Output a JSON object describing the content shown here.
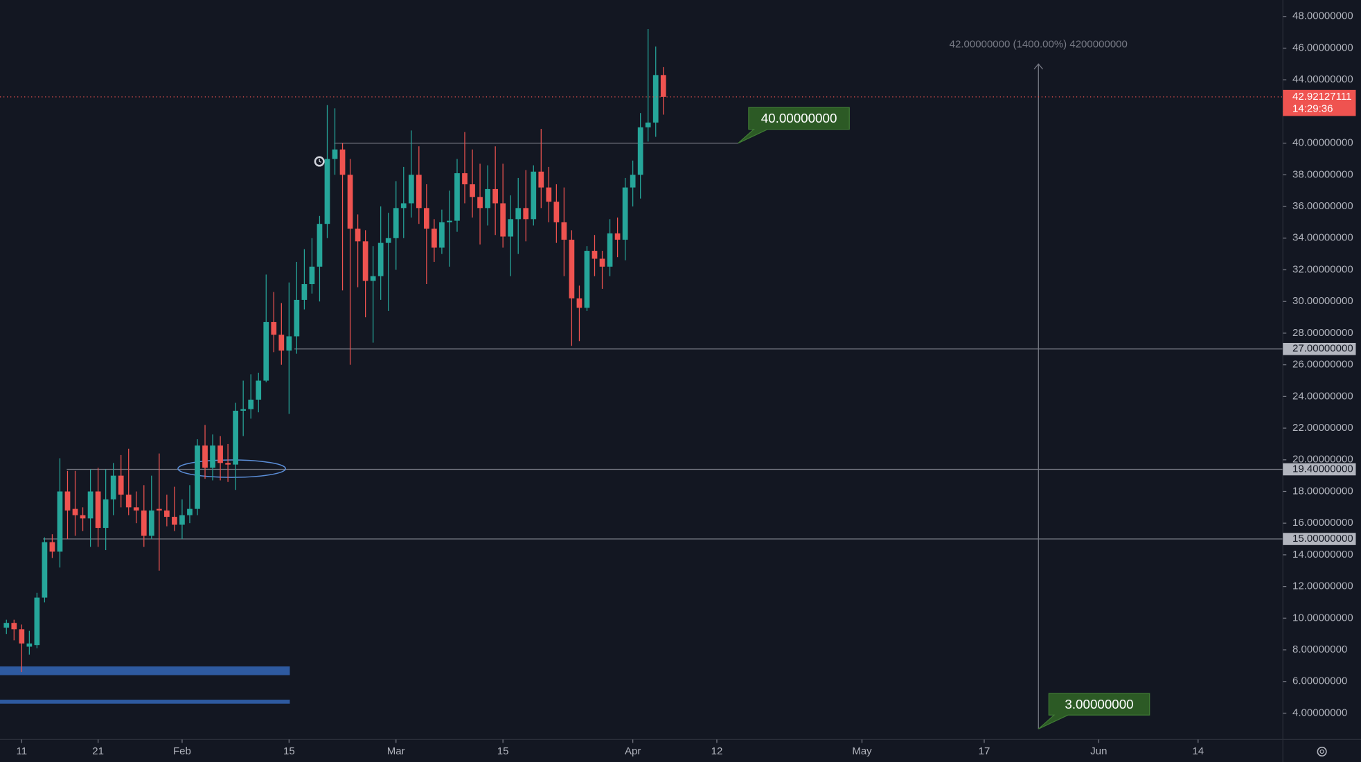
{
  "chart_data": {
    "type": "candlestick",
    "x": [
      9,
      10,
      11,
      12,
      13,
      14,
      15,
      16,
      17,
      18,
      19,
      20,
      21,
      22,
      23,
      24,
      25,
      26,
      27,
      28,
      29,
      30,
      31,
      32,
      33,
      34,
      35,
      36,
      37,
      38,
      39,
      40,
      41,
      42,
      43,
      44,
      45,
      46,
      47,
      48,
      49,
      50,
      51,
      52,
      53,
      54,
      55,
      56,
      57,
      58,
      59,
      60,
      61,
      62,
      63,
      64,
      65,
      66,
      67,
      68,
      69,
      70,
      71,
      72,
      73,
      74,
      75,
      76,
      77,
      78,
      79,
      80,
      81,
      82,
      83,
      84,
      85,
      86,
      87,
      88,
      89,
      90,
      91,
      92,
      93,
      94,
      95
    ],
    "open": [
      9.4,
      9.7,
      9.3,
      8.2,
      8.3,
      11.3,
      14.8,
      14.2,
      18.0,
      16.9,
      16.5,
      16.3,
      18.0,
      15.7,
      17.5,
      19.0,
      17.8,
      17.0,
      16.8,
      15.2,
      16.9,
      16.8,
      16.4,
      15.9,
      16.5,
      16.9,
      20.9,
      19.5,
      20.9,
      19.8,
      19.7,
      23.1,
      23.2,
      23.8,
      25.0,
      28.7,
      27.9,
      26.9,
      27.8,
      30.1,
      31.1,
      32.2,
      34.9,
      39.0,
      39.6,
      38.0,
      34.6,
      33.8,
      31.3,
      31.6,
      33.7,
      34.0,
      35.9,
      36.2,
      38.0,
      35.9,
      34.6,
      33.4,
      35.0,
      35.1,
      38.1,
      37.4,
      36.6,
      35.9,
      37.1,
      36.2,
      34.1,
      35.2,
      35.9,
      35.2,
      38.2,
      37.2,
      36.3,
      35.0,
      33.9,
      30.2,
      29.6,
      33.2,
      32.7,
      32.2,
      34.3,
      33.9,
      37.2,
      38.0,
      41.0,
      41.3,
      44.3
    ],
    "high": [
      9.9,
      9.9,
      9.6,
      9.2,
      11.6,
      15.1,
      15.3,
      20.1,
      19.3,
      19.3,
      17.0,
      19.4,
      19.5,
      19.4,
      19.8,
      20.3,
      20.7,
      18.0,
      18.4,
      19.0,
      20.4,
      17.8,
      18.3,
      17.5,
      18.4,
      21.3,
      22.2,
      21.6,
      21.5,
      21.0,
      23.6,
      25.0,
      25.4,
      25.5,
      31.7,
      30.6,
      29.9,
      31.2,
      32.5,
      33.3,
      34.0,
      35.4,
      42.4,
      42.2,
      40.0,
      39.0,
      35.5,
      34.5,
      33.5,
      36.0,
      35.6,
      37.6,
      38.5,
      40.8,
      39.8,
      37.4,
      35.2,
      35.8,
      37.0,
      39.0,
      40.7,
      39.6,
      38.7,
      38.6,
      39.8,
      38.7,
      36.7,
      37.8,
      38.3,
      38.6,
      40.9,
      38.5,
      37.4,
      37.2,
      34.5,
      31.0,
      33.5,
      34.2,
      33.2,
      35.2,
      35.3,
      37.8,
      38.9,
      41.9,
      47.2,
      46.1,
      44.8
    ],
    "low": [
      9.0,
      8.6,
      6.6,
      7.7,
      8.1,
      11.0,
      13.8,
      13.2,
      15.0,
      15.2,
      15.5,
      14.5,
      14.5,
      14.3,
      16.5,
      17.0,
      16.5,
      16.0,
      14.5,
      15.0,
      13.0,
      15.8,
      15.5,
      15.0,
      16.0,
      16.5,
      18.8,
      18.7,
      18.7,
      18.6,
      18.1,
      21.5,
      22.6,
      23.0,
      24.9,
      26.8,
      26.0,
      22.9,
      26.7,
      29.5,
      30.5,
      30.0,
      34.0,
      38.0,
      30.7,
      26.0,
      30.9,
      29.0,
      27.4,
      30.1,
      29.4,
      32.0,
      34.0,
      35.3,
      34.9,
      31.1,
      32.5,
      33.0,
      32.2,
      34.4,
      36.2,
      35.3,
      33.6,
      34.8,
      34.2,
      33.4,
      31.6,
      33.0,
      33.8,
      34.8,
      35.9,
      35.0,
      33.7,
      31.6,
      27.2,
      27.5,
      29.4,
      31.6,
      30.8,
      31.6,
      32.8,
      32.6,
      36.0,
      36.5,
      40.1,
      40.4,
      41.8
    ],
    "close": [
      9.7,
      9.3,
      8.4,
      8.4,
      11.3,
      14.8,
      14.2,
      18.0,
      16.8,
      16.5,
      16.3,
      18.0,
      15.7,
      17.5,
      19.0,
      17.8,
      17.0,
      16.8,
      15.2,
      16.8,
      16.8,
      16.4,
      15.9,
      16.5,
      16.9,
      20.9,
      19.5,
      20.9,
      19.8,
      19.7,
      23.1,
      23.2,
      23.8,
      25.0,
      28.7,
      27.9,
      26.9,
      27.8,
      30.1,
      31.1,
      32.2,
      34.9,
      39.0,
      39.6,
      38.0,
      34.6,
      33.8,
      31.3,
      31.6,
      33.7,
      34.0,
      35.9,
      36.2,
      38.0,
      35.9,
      34.6,
      33.4,
      35.0,
      35.1,
      38.1,
      37.4,
      36.6,
      35.9,
      37.1,
      36.2,
      34.1,
      35.2,
      35.9,
      35.2,
      38.2,
      37.2,
      36.3,
      35.0,
      33.9,
      30.2,
      29.6,
      33.2,
      32.7,
      32.2,
      34.3,
      33.9,
      37.2,
      38.0,
      41.0,
      41.3,
      44.3,
      42.92127111
    ],
    "up_color": "#26a69a",
    "down_color": "#ef5350",
    "xlim": [
      8.16,
      176.1
    ],
    "ylim": [
      2.34,
      49.04
    ],
    "xticks": [
      {
        "value": 11,
        "label": "11"
      },
      {
        "value": 21,
        "label": "21"
      },
      {
        "value": 32,
        "label": "Feb"
      },
      {
        "value": 46,
        "label": "15"
      },
      {
        "value": 60,
        "label": "Mar"
      },
      {
        "value": 74,
        "label": "15"
      },
      {
        "value": 91,
        "label": "Apr"
      },
      {
        "value": 102,
        "label": "12"
      },
      {
        "value": 121,
        "label": "May"
      },
      {
        "value": 137,
        "label": "17"
      },
      {
        "value": 152,
        "label": "Jun"
      },
      {
        "value": 165,
        "label": "14"
      }
    ],
    "yticks": [
      {
        "value": 4,
        "label": "4.00000000"
      },
      {
        "value": 6,
        "label": "6.00000000"
      },
      {
        "value": 8,
        "label": "8.00000000"
      },
      {
        "value": 10,
        "label": "10.00000000"
      },
      {
        "value": 12,
        "label": "12.00000000"
      },
      {
        "value": 14,
        "label": "14.00000000"
      },
      {
        "value": 16,
        "label": "16.00000000"
      },
      {
        "value": 18,
        "label": "18.00000000"
      },
      {
        "value": 20,
        "label": "20.00000000"
      },
      {
        "value": 22,
        "label": "22.00000000"
      },
      {
        "value": 24,
        "label": "24.00000000"
      },
      {
        "value": 26,
        "label": "26.00000000"
      },
      {
        "value": 28,
        "label": "28.00000000"
      },
      {
        "value": 30,
        "label": "30.00000000"
      },
      {
        "value": 32,
        "label": "32.00000000"
      },
      {
        "value": 34,
        "label": "34.00000000"
      },
      {
        "value": 36,
        "label": "36.00000000"
      },
      {
        "value": 38,
        "label": "38.00000000"
      },
      {
        "value": 40,
        "label": "40.00000000"
      },
      {
        "value": 42,
        "label": "42.00000000"
      },
      {
        "value": 44,
        "label": "44.00000000"
      },
      {
        "value": 46,
        "label": "46.00000000"
      },
      {
        "value": 48,
        "label": "48.00000000"
      }
    ],
    "grid": false,
    "levels": [
      {
        "value": 40,
        "label": "40.00000000",
        "from": 51.9,
        "to": 104.8,
        "tag": "callout"
      },
      {
        "value": 27,
        "label": "27.00000000",
        "from": 46.7,
        "tag": "axis"
      },
      {
        "value": 19.4,
        "label": "19.40000000",
        "from": 16.9,
        "tag": "axis"
      },
      {
        "value": 15,
        "label": "15.00000000",
        "from": 13.8,
        "tag": "axis"
      }
    ],
    "zones": [
      {
        "low": 6.4,
        "high": 6.95,
        "to": 46.1,
        "color": "#2e5aa0"
      },
      {
        "low": 4.6,
        "high": 4.85,
        "to": 46.1,
        "color": "#2e5aa0"
      }
    ],
    "last_price": {
      "value": 42.92127111,
      "countdown": "14:29:36",
      "color": "#ef5350"
    },
    "measure": {
      "from": 3,
      "to": 45,
      "x": 144.1,
      "text": "42.00000000 (1400.00%) 4200000000",
      "label": "3.00000000"
    }
  }
}
